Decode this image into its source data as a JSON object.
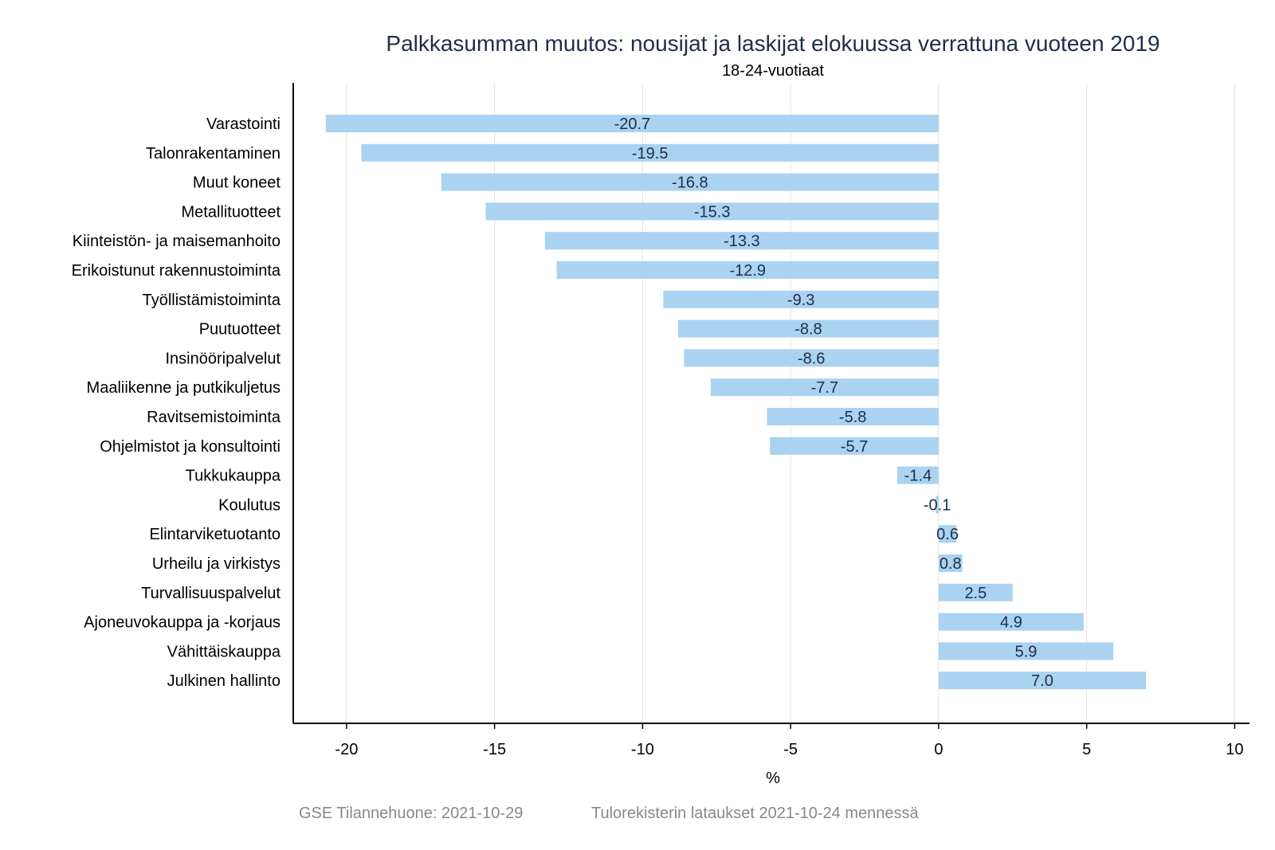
{
  "chart_data": {
    "type": "bar",
    "orientation": "horizontal",
    "title": "Palkkasumman muutos: nousijat ja laskijat elokuussa verrattuna vuoteen 2019",
    "subtitle": "18-24-vuotiaat",
    "xlabel": "%",
    "xlim": [
      -21.8,
      10.5
    ],
    "xticks": [
      -20,
      -15,
      -10,
      -5,
      0,
      5,
      10
    ],
    "xtick_labels": [
      "-20",
      "-15",
      "-10",
      "-5",
      "0",
      "5",
      "10"
    ],
    "grid": "vertical",
    "bar_color": "#a9d3f0",
    "categories": [
      "Varastointi",
      "Talonrakentaminen",
      "Muut koneet",
      "Metallituotteet",
      "Kiinteistön- ja maisemanhoito",
      "Erikoistunut rakennustoiminta",
      "Työllistämistoiminta",
      "Puutuotteet",
      "Insinööripalvelut",
      "Maaliikenne ja putkikuljetus",
      "Ravitsemistoiminta",
      "Ohjelmistot ja konsultointi",
      "Tukkukauppa",
      "Koulutus",
      "Elintarviketuotanto",
      "Urheilu ja virkistys",
      "Turvallisuuspalvelut",
      "Ajoneuvokauppa ja -korjaus",
      "Vähittäiskauppa",
      "Julkinen hallinto"
    ],
    "values": [
      -20.7,
      -19.5,
      -16.8,
      -15.3,
      -13.3,
      -12.9,
      -9.3,
      -8.8,
      -8.6,
      -7.7,
      -5.8,
      -5.7,
      -1.4,
      -0.1,
      0.6,
      0.8,
      2.5,
      4.9,
      5.9,
      7.0
    ],
    "value_labels": [
      "-20.7",
      "-19.5",
      "-16.8",
      "-15.3",
      "-13.3",
      "-12.9",
      "-9.3",
      "-8.8",
      "-8.6",
      "-7.7",
      "-5.8",
      "-5.7",
      "-1.4",
      "-0.1",
      "0.6",
      "0.8",
      "2.5",
      "4.9",
      "5.9",
      "7.0"
    ]
  },
  "caption": {
    "source": "GSE Tilannehuone: 2021-10-29",
    "note": "Tulorekisterin lataukset 2021-10-24 mennessä"
  }
}
